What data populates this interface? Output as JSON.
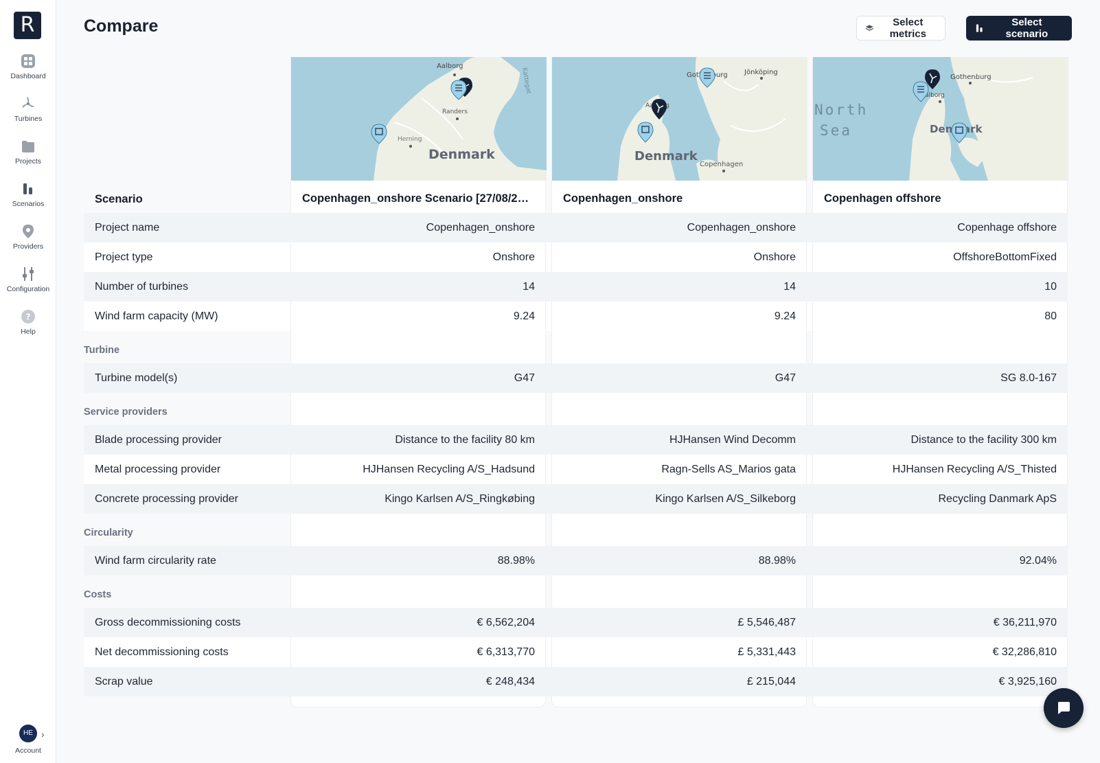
{
  "sidebar": {
    "logo_letter": "R",
    "items": [
      {
        "label": "Dashboard",
        "icon": "grid-icon"
      },
      {
        "label": "Turbines",
        "icon": "turbine-icon"
      },
      {
        "label": "Projects",
        "icon": "folder-icon"
      },
      {
        "label": "Scenarios",
        "icon": "bars-icon"
      },
      {
        "label": "Providers",
        "icon": "location-pin-icon"
      },
      {
        "label": "Configuration",
        "icon": "sliders-icon"
      },
      {
        "label": "Help",
        "icon": "help-icon"
      }
    ],
    "account": {
      "initials": "HE",
      "label": "Account",
      "chevron": "›"
    }
  },
  "header": {
    "title": "Compare",
    "select_metrics_label": "Select metrics",
    "select_scenario_label": "Select scenario"
  },
  "table": {
    "scenario_header": "Scenario",
    "columns": [
      {
        "title": "Copenhagen_onshore Scenario [27/08/2…",
        "map_labels": {
          "a": "Aalborg",
          "b": "Randers",
          "c": "Herning",
          "d": "Denmark",
          "e": "Kattegat"
        },
        "values": {
          "project_name": "Copenhagen_onshore",
          "project_type": "Onshore",
          "num_turbines": "14",
          "capacity": "9.24",
          "turbine_models": "G47",
          "blade_provider": "Distance to the facility 80 km",
          "metal_provider": "HJHansen Recycling A/S_Hadsund",
          "concrete_provider": "Kingo Karlsen A/S_Ringkøbing",
          "circularity_rate": "88.98%",
          "gross_costs": "€ 6,562,204",
          "net_costs": "€ 6,313,770",
          "scrap_value": "€ 248,434"
        }
      },
      {
        "title": "Copenhagen_onshore",
        "map_labels": {
          "a": "Gothenburg",
          "b": "Jönköping",
          "c": "Aalborg",
          "d": "Denmark",
          "e": "Copenhagen"
        },
        "values": {
          "project_name": "Copenhagen_onshore",
          "project_type": "Onshore",
          "num_turbines": "14",
          "capacity": "9.24",
          "turbine_models": "G47",
          "blade_provider": "HJHansen Wind Decomm",
          "metal_provider": "Ragn-Sells AS_Marios gata",
          "concrete_provider": "Kingo Karlsen A/S_Silkeborg",
          "circularity_rate": "88.98%",
          "gross_costs": "£ 5,546,487",
          "net_costs": "£ 5,331,443",
          "scrap_value": "£ 215,044"
        }
      },
      {
        "title": "Copenhagen offshore",
        "map_labels": {
          "a": "Gothenburg",
          "b": "Aalborg",
          "c": "North",
          "d": "Sea",
          "e": "Denmark"
        },
        "values": {
          "project_name": "Copenhage offshore",
          "project_type": "OffshoreBottomFixed",
          "num_turbines": "10",
          "capacity": "80",
          "turbine_models": "SG 8.0-167",
          "blade_provider": "Distance to the facility 300 km",
          "metal_provider": "HJHansen Recycling A/S_Thisted",
          "concrete_provider": "Recycling Danmark ApS",
          "circularity_rate": "92.04%",
          "gross_costs": "€ 36,211,970",
          "net_costs": "€ 32,286,810",
          "scrap_value": "€ 3,925,160"
        }
      }
    ],
    "rows": {
      "project_name": "Project name",
      "project_type": "Project type",
      "num_turbines": "Number of turbines",
      "capacity": "Wind farm capacity (MW)",
      "turbine_models": "Turbine model(s)",
      "blade_provider": "Blade processing provider",
      "metal_provider": "Metal processing provider",
      "concrete_provider": "Concrete processing provider",
      "circularity_rate": "Wind farm circularity rate",
      "gross_costs": "Gross decommissioning costs",
      "net_costs": "Net decommissioning costs",
      "scrap_value": "Scrap value"
    },
    "sections": {
      "turbine": "Turbine",
      "service_providers": "Service providers",
      "circularity": "Circularity",
      "costs": "Costs"
    }
  },
  "colors": {
    "primary": "#172236",
    "sea": "#a7cedd",
    "land": "#eef0e6",
    "row_alt": "#f1f4f7"
  }
}
